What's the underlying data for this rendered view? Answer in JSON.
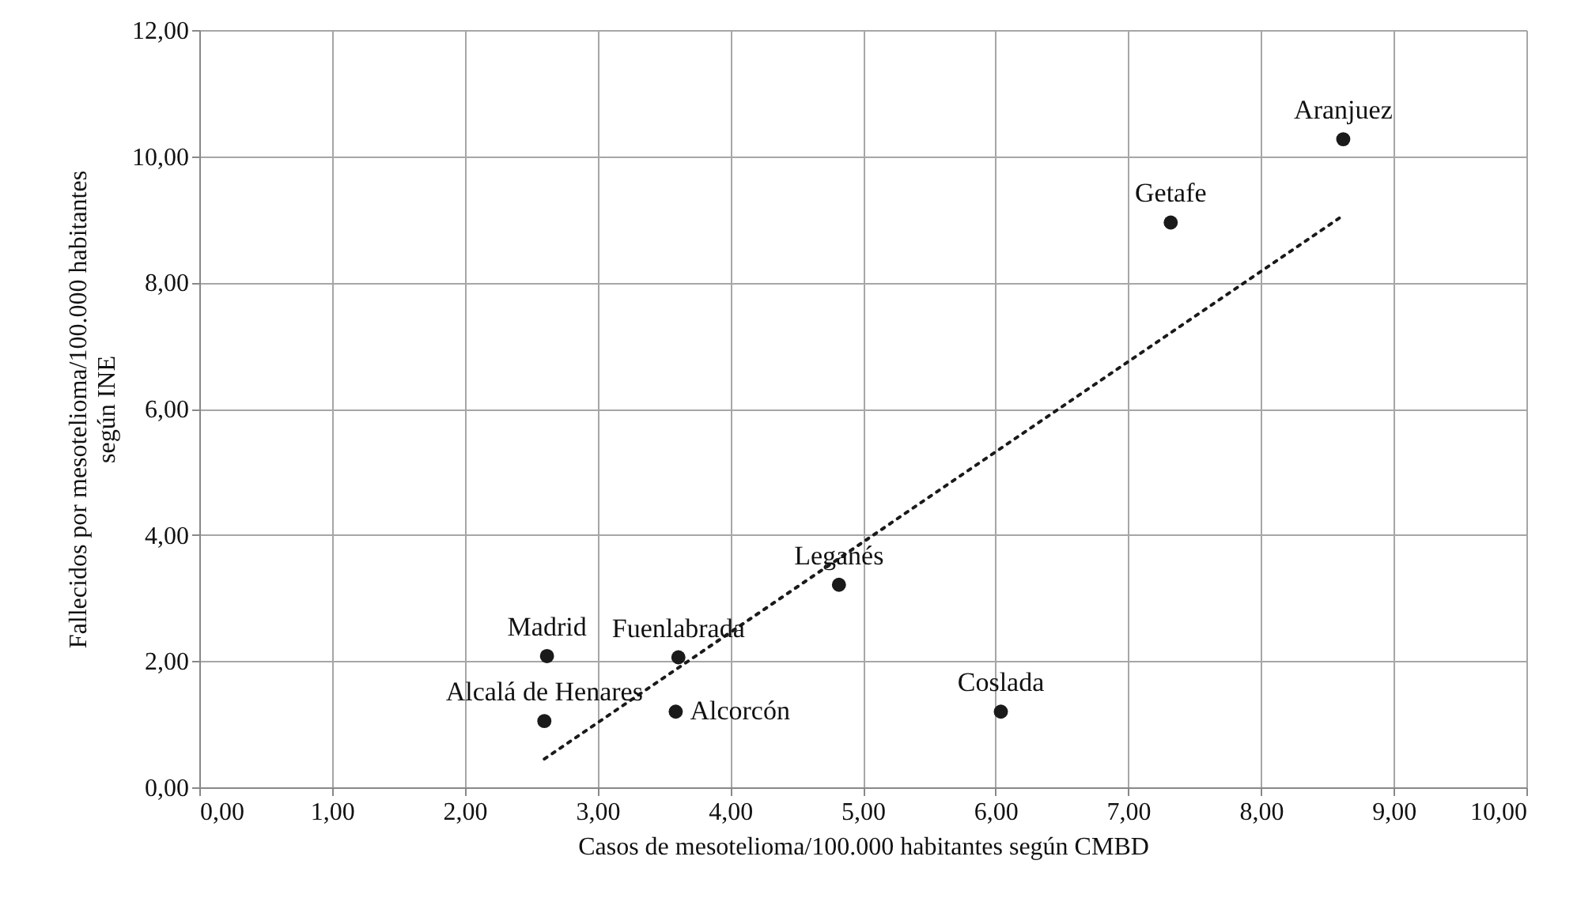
{
  "chart_data": {
    "type": "scatter",
    "xlabel": "Casos de mesotelioma/100.000 habitantes según CMBD",
    "ylabel": "Fallecidos por mesotelioma/100.000 habitantes\nsegún INE",
    "series": [
      {
        "type": "scatter",
        "color": "#1a1a1a",
        "marker": "circle",
        "x": [
          8.62,
          7.32,
          4.82,
          3.61,
          2.62,
          2.6,
          3.59,
          6.04
        ],
        "values": [
          10.27,
          8.95,
          3.21,
          2.06,
          2.08,
          1.05,
          1.2,
          1.2
        ]
      },
      {
        "type": "line",
        "color": "#1a1a1a",
        "line_style": "dotted",
        "x": [
          2.6,
          8.59
        ],
        "values": [
          0.45,
          9.02
        ]
      }
    ],
    "annotations": [
      {
        "text": "Aranjuez",
        "x": 8.62,
        "y": 10.27
      },
      {
        "text": "Getafe",
        "x": 7.32,
        "y": 8.95
      },
      {
        "text": "Leganés",
        "x": 4.82,
        "y": 3.21
      },
      {
        "text": "Fuenlabrada",
        "x": 3.61,
        "y": 2.06
      },
      {
        "text": "Madrid",
        "x": 2.62,
        "y": 2.08
      },
      {
        "text": "Alcalá de Henares",
        "x": 2.6,
        "y": 1.05
      },
      {
        "text": "Alcorcón",
        "x": 3.59,
        "y": 1.2
      },
      {
        "text": "Coslada",
        "x": 6.04,
        "y": 1.2
      }
    ],
    "xlim": [
      0,
      10
    ],
    "xticks": [
      {
        "value": 0,
        "label": "0,00"
      },
      {
        "value": 1,
        "label": "1,00"
      },
      {
        "value": 2,
        "label": "2,00"
      },
      {
        "value": 3,
        "label": "3,00"
      },
      {
        "value": 4,
        "label": "4,00"
      },
      {
        "value": 5,
        "label": "5,00"
      },
      {
        "value": 6,
        "label": "6,00"
      },
      {
        "value": 7,
        "label": "7,00"
      },
      {
        "value": 8,
        "label": "8,00"
      },
      {
        "value": 9,
        "label": "9,00"
      },
      {
        "value": 10,
        "label": "10,00"
      }
    ],
    "ylim": [
      0,
      12
    ],
    "yticks": [
      {
        "value": 0,
        "label": "0,00"
      },
      {
        "value": 2,
        "label": "2,00"
      },
      {
        "value": 4,
        "label": "4,00"
      },
      {
        "value": 6,
        "label": "6,00"
      },
      {
        "value": 8,
        "label": "8,00"
      },
      {
        "value": 10,
        "label": "10,00"
      },
      {
        "value": 12,
        "label": "12,00"
      }
    ],
    "grid": true
  }
}
